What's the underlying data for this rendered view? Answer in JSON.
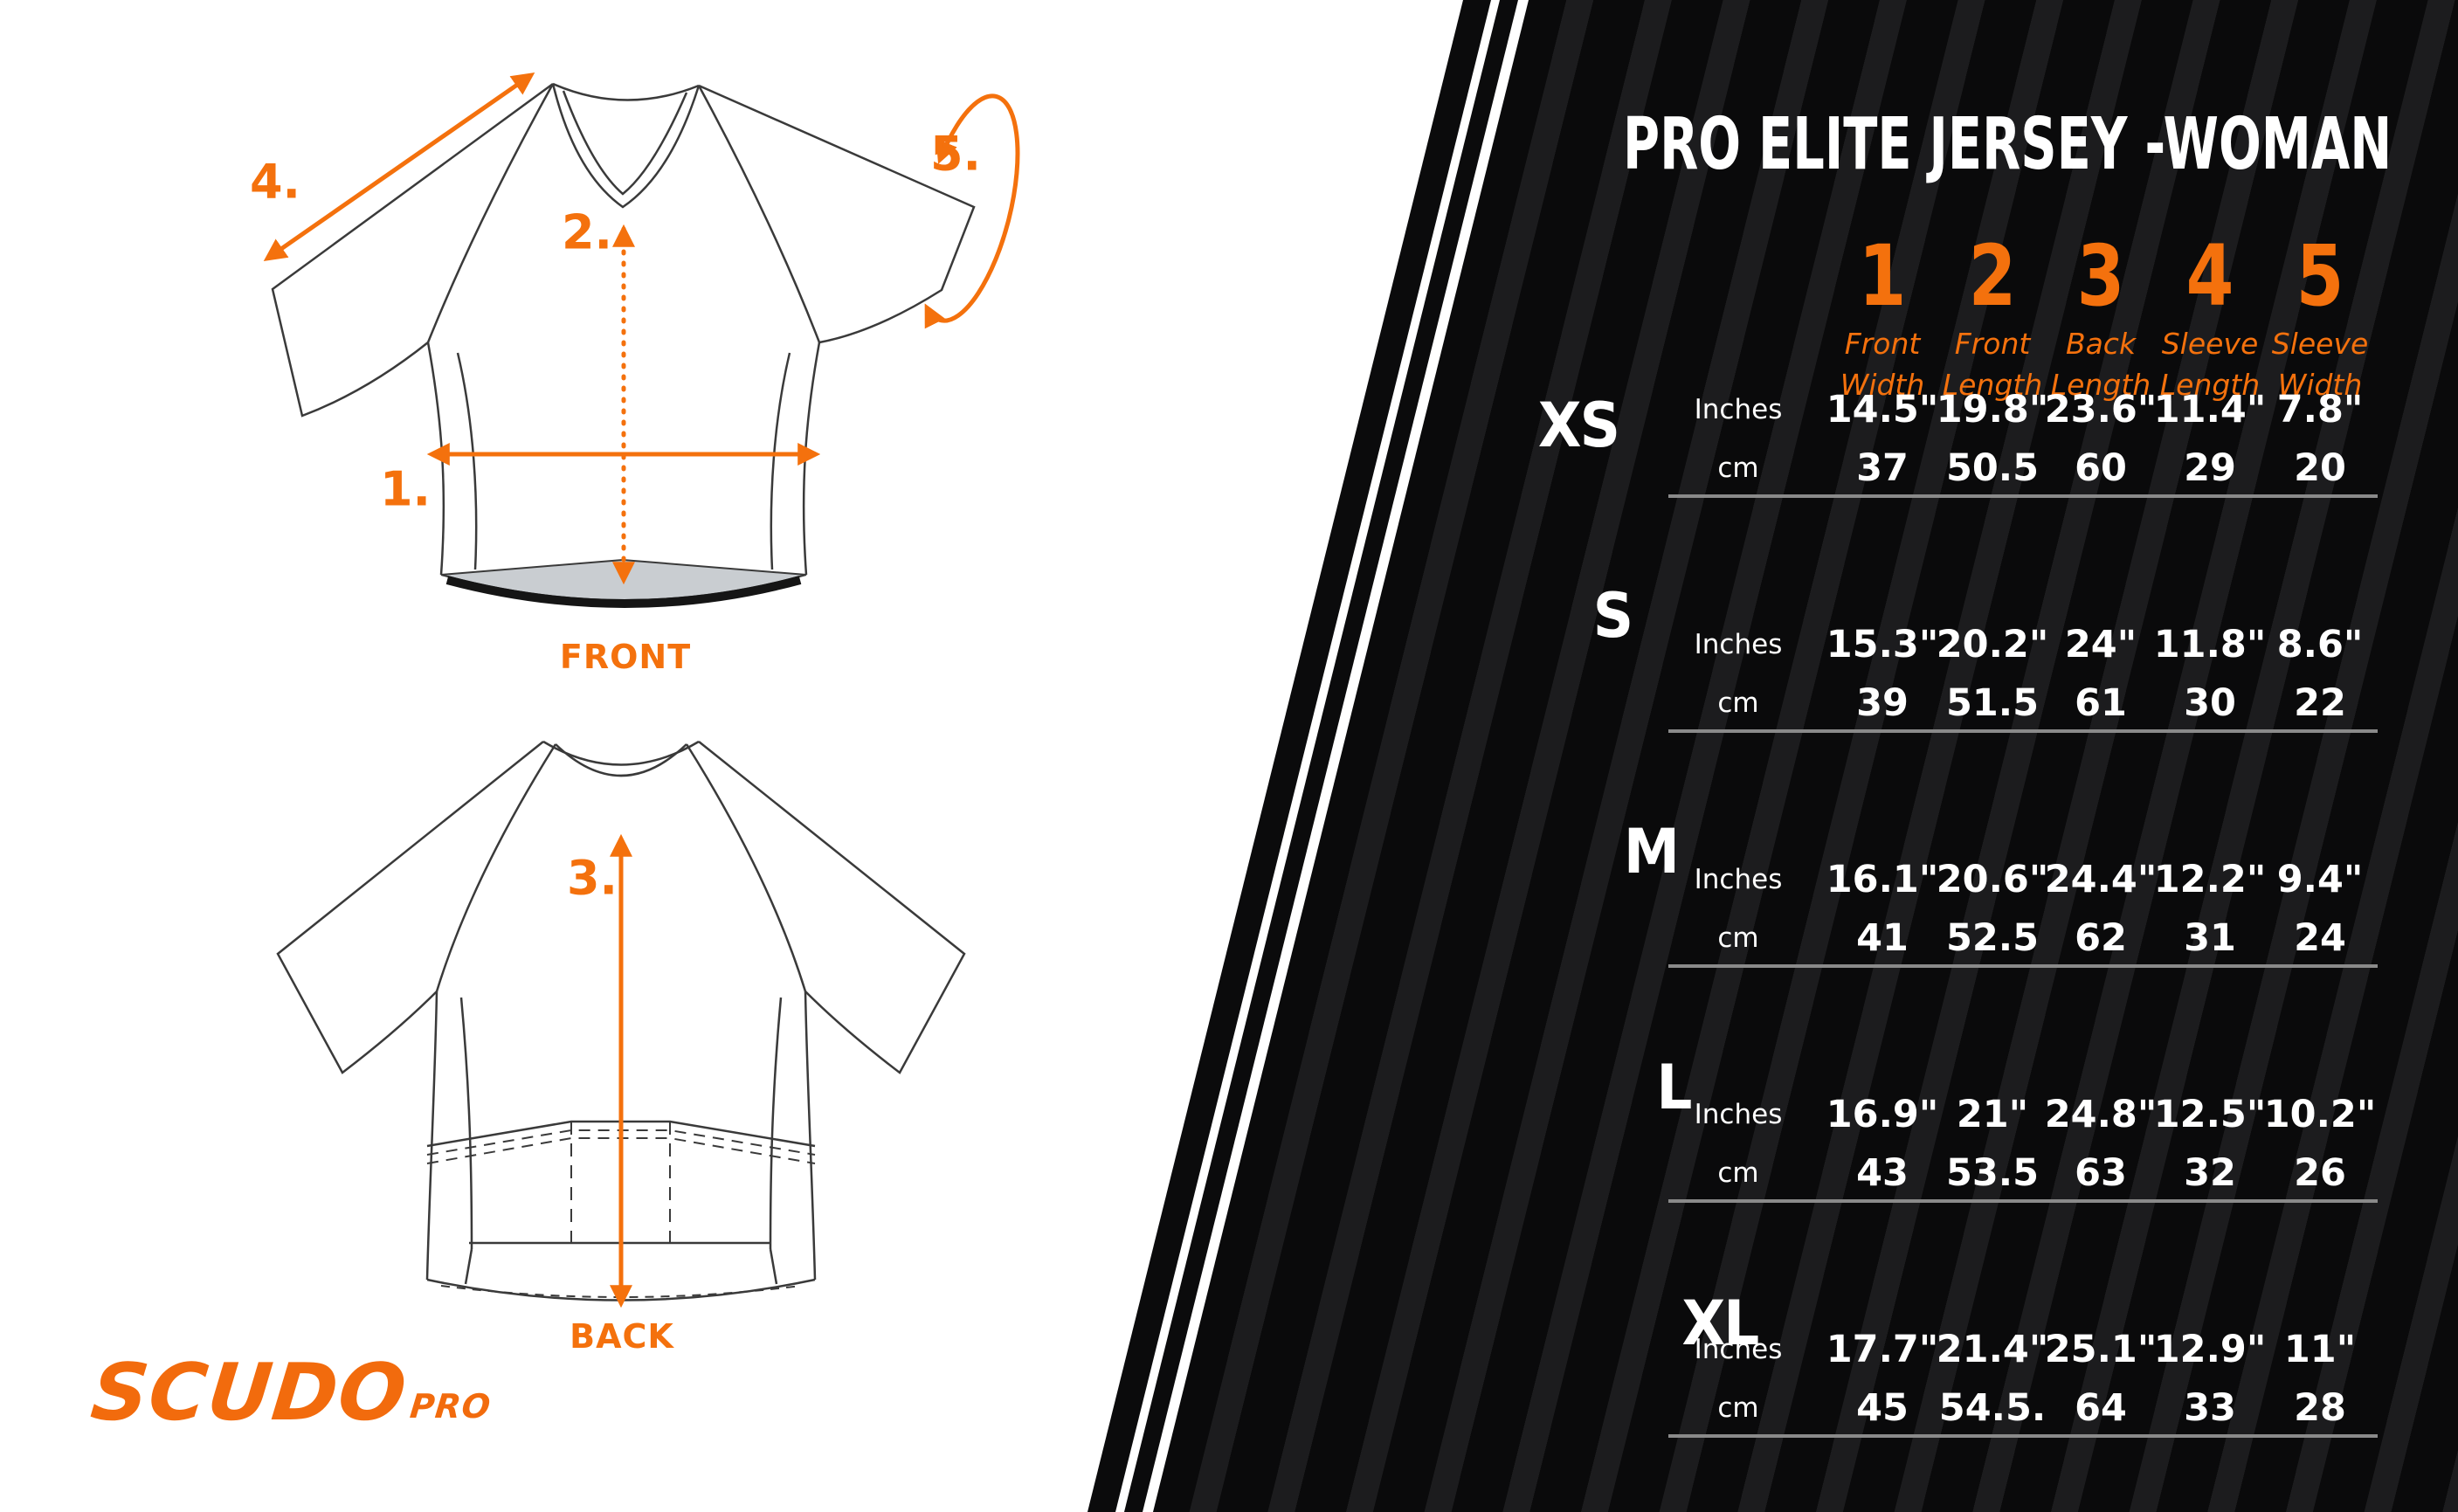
{
  "title": "PRO ELITE JERSEY -WOMAN",
  "colors": {
    "accent_orange": "#f4710d",
    "panel_black": "#0a0a0b",
    "panel_stripe": "#1c1c1e",
    "row_underline": "#8a8a8a",
    "hem_gray": "#c9cdd1",
    "outline": "#3a3a3a",
    "text_white": "#ffffff"
  },
  "columns": [
    {
      "num": "1",
      "line1": "Front",
      "line2": "Width"
    },
    {
      "num": "2",
      "line1": "Front",
      "line2": "Length"
    },
    {
      "num": "3",
      "line1": "Back",
      "line2": "Length"
    },
    {
      "num": "4",
      "line1": "Sleeve",
      "line2": "Length"
    },
    {
      "num": "5",
      "line1": "Sleeve",
      "line2": "Width"
    }
  ],
  "units": {
    "inches": "Inches",
    "cm": "cm"
  },
  "sizes": [
    {
      "name": "XS",
      "inches": [
        "14.5\"",
        "19.8\"",
        "23.6\"",
        "11.4\"",
        "7.8\""
      ],
      "cm": [
        "37",
        "50.5",
        "60",
        "29",
        "20"
      ]
    },
    {
      "name": "S",
      "inches": [
        "15.3\"",
        "20.2\"",
        "24\"",
        "11.8\"",
        "8.6\""
      ],
      "cm": [
        "39",
        "51.5",
        "61",
        "30",
        "22"
      ]
    },
    {
      "name": "M",
      "inches": [
        "16.1\"",
        "20.6\"",
        "24.4\"",
        "12.2\"",
        "9.4\""
      ],
      "cm": [
        "41",
        "52.5",
        "62",
        "31",
        "24"
      ]
    },
    {
      "name": "L",
      "inches": [
        "16.9\"",
        "21\"",
        "24.8\"",
        "12.5\"",
        "10.2\""
      ],
      "cm": [
        "43",
        "53.5",
        "63",
        "32",
        "26"
      ]
    },
    {
      "name": "XL",
      "inches": [
        "17.7\"",
        "21.4\"",
        "25.1\"",
        "12.9\"",
        "11\""
      ],
      "cm": [
        "45",
        "54.5.",
        "64",
        "33",
        "28"
      ]
    }
  ],
  "diagram": {
    "front_label": "FRONT",
    "back_label": "BACK",
    "callout_1": "1.",
    "callout_2": "2.",
    "callout_3": "3.",
    "callout_4": "4.",
    "callout_5": "5."
  },
  "logo": {
    "scudo": "SCUDO",
    "pro": "PRO"
  },
  "chart_data": {
    "type": "table",
    "title": "PRO ELITE JERSEY -WOMAN size chart",
    "measure_columns": [
      "Front Width",
      "Front Length",
      "Back Length",
      "Sleeve Length",
      "Sleeve Width"
    ],
    "rows": [
      {
        "size": "XS",
        "inches": [
          14.5,
          19.8,
          23.6,
          11.4,
          7.8
        ],
        "cm": [
          37,
          50.5,
          60,
          29,
          20
        ]
      },
      {
        "size": "S",
        "inches": [
          15.3,
          20.2,
          24.0,
          11.8,
          8.6
        ],
        "cm": [
          39,
          51.5,
          61,
          30,
          22
        ]
      },
      {
        "size": "M",
        "inches": [
          16.1,
          20.6,
          24.4,
          12.2,
          9.4
        ],
        "cm": [
          41,
          52.5,
          62,
          31,
          24
        ]
      },
      {
        "size": "L",
        "inches": [
          16.9,
          21.0,
          24.8,
          12.5,
          10.2
        ],
        "cm": [
          43,
          53.5,
          63,
          32,
          26
        ]
      },
      {
        "size": "XL",
        "inches": [
          17.7,
          21.4,
          25.1,
          12.9,
          11.0
        ],
        "cm": [
          45,
          54.5,
          64,
          33,
          28
        ]
      }
    ]
  }
}
